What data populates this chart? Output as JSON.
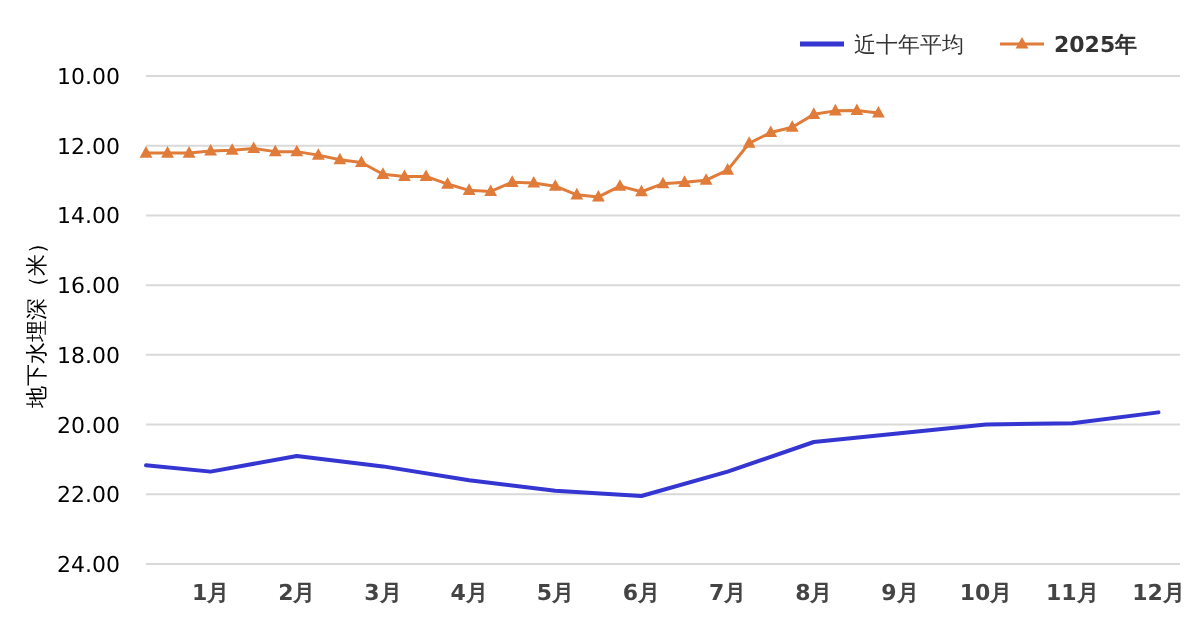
{
  "chart_data": {
    "type": "line",
    "ylabel": "地下水埋深（米）",
    "xlim": [
      0.25,
      12.25
    ],
    "xticks": [
      {
        "value": 1,
        "label": "1月"
      },
      {
        "value": 2,
        "label": "2月"
      },
      {
        "value": 3,
        "label": "3月"
      },
      {
        "value": 4,
        "label": "4月"
      },
      {
        "value": 5,
        "label": "5月"
      },
      {
        "value": 6,
        "label": "6月"
      },
      {
        "value": 7,
        "label": "7月"
      },
      {
        "value": 8,
        "label": "8月"
      },
      {
        "value": 9,
        "label": "9月"
      },
      {
        "value": 10,
        "label": "10月"
      },
      {
        "value": 11,
        "label": "11月"
      },
      {
        "value": 12,
        "label": "12月"
      }
    ],
    "ylim": [
      24,
      10
    ],
    "yticks": [
      {
        "value": 10,
        "label": "10.00"
      },
      {
        "value": 12,
        "label": "12.00"
      },
      {
        "value": 14,
        "label": "14.00"
      },
      {
        "value": 16,
        "label": "16.00"
      },
      {
        "value": 18,
        "label": "18.00"
      },
      {
        "value": 20,
        "label": "20.00"
      },
      {
        "value": 22,
        "label": "22.00"
      },
      {
        "value": 24,
        "label": "24.00"
      }
    ],
    "grid": "y",
    "legend": "top right",
    "line_style": "solid",
    "series": [
      {
        "name": "近十年平均",
        "color": "#3535d2",
        "marker": "none",
        "x": [
          0.25,
          1,
          2,
          3,
          4,
          5,
          6,
          7,
          8,
          9,
          10,
          11,
          12
        ],
        "values": [
          21.17,
          21.35,
          20.9,
          21.2,
          21.6,
          21.9,
          22.05,
          21.35,
          20.5,
          20.25,
          20.0,
          19.96,
          19.65
        ]
      },
      {
        "name": "2025年",
        "color": "#e07b39",
        "marker": "triangle",
        "x": [
          0.25,
          0.5,
          0.75,
          1,
          1.25,
          1.5,
          1.75,
          2,
          2.25,
          2.5,
          2.75,
          3,
          3.25,
          3.5,
          3.75,
          4,
          4.25,
          4.5,
          4.75,
          5,
          5.25,
          5.5,
          5.75,
          6,
          6.25,
          6.5,
          6.75,
          7,
          7.25,
          7.5,
          7.75,
          8,
          8.25,
          8.5,
          8.75
        ],
        "values": [
          12.21,
          12.21,
          12.21,
          12.15,
          12.13,
          12.08,
          12.17,
          12.17,
          12.27,
          12.4,
          12.48,
          12.82,
          12.88,
          12.88,
          13.1,
          13.28,
          13.31,
          13.05,
          13.07,
          13.16,
          13.41,
          13.47,
          13.16,
          13.32,
          13.09,
          13.05,
          12.99,
          12.7,
          11.93,
          11.62,
          11.47,
          11.1,
          11.0,
          10.99,
          11.06
        ]
      }
    ]
  }
}
